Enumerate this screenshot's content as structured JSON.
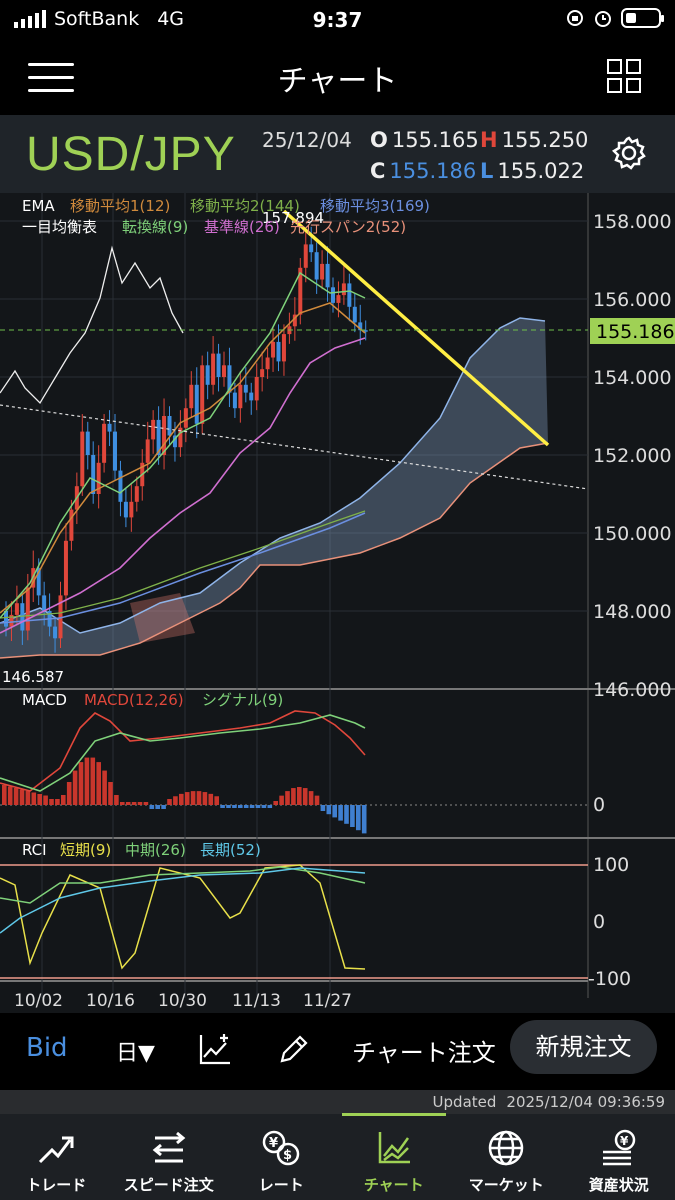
{
  "status_bar": {
    "carrier": "SoftBank",
    "network": "4G",
    "time": "9:37"
  },
  "header": {
    "title": "チャート",
    "menu_icon": "hamburger-menu-icon",
    "layout_icon": "grid-layout-icon"
  },
  "symbol": {
    "pair": "USD/JPY",
    "date": "25/12/04",
    "open_label": "O",
    "open": "155.165",
    "high_label": "H",
    "high": "155.250",
    "close_label": "C",
    "close": "155.186",
    "low_label": "L",
    "low": "155.022",
    "settings_icon": "gear-icon"
  },
  "colors": {
    "accent_green": "#9fd155",
    "up": "#e0473b",
    "down": "#3f8fe0",
    "trendline": "#ffee44"
  },
  "chart_data": {
    "type": "candlestick",
    "price_axis": [
      "158.000",
      "156.000",
      "154.000",
      "152.000",
      "150.000",
      "148.000",
      "146.000"
    ],
    "ylim": [
      146.0,
      158.0
    ],
    "current_price": "155.186",
    "high_marker": "157.894",
    "low_marker": "146.587",
    "x_ticks": [
      "10/02",
      "10/16",
      "10/30",
      "11/13",
      "11/27"
    ],
    "legend_row1": {
      "label": "EMA",
      "items": [
        "移動平均1(12)",
        "移動平均2(144)",
        "移動平均3(169)"
      ]
    },
    "legend_row2": {
      "label": "一目均衡表",
      "items": [
        "転換線(9)",
        "基準線(26)",
        "先行スパン2(52)"
      ]
    },
    "macd": {
      "label": "MACD",
      "items": [
        "MACD(12,26)",
        "シグナル(9)"
      ],
      "axis": [
        "0"
      ]
    },
    "rci": {
      "label": "RCI",
      "items": [
        "短期(9)",
        "中期(26)",
        "長期(52)"
      ],
      "axis": [
        "100",
        "0",
        "-100"
      ]
    }
  },
  "toolbar": {
    "bid": "Bid",
    "period": "日▼",
    "indicator_icon": "add-indicator-icon",
    "draw_icon": "pencil-icon",
    "chart_order": "チャート注文",
    "new_order": "新規注文"
  },
  "updated": {
    "label": "Updated",
    "value": "2025/12/04 09:36:59"
  },
  "tabs": [
    {
      "label": "トレード",
      "icon": "trend-arrow-icon"
    },
    {
      "label": "スピード注文",
      "icon": "speed-order-icon"
    },
    {
      "label": "レート",
      "icon": "yen-dollar-icon"
    },
    {
      "label": "チャート",
      "icon": "chart-icon"
    },
    {
      "label": "マーケット",
      "icon": "globe-icon"
    },
    {
      "label": "資産状況",
      "icon": "assets-icon"
    }
  ]
}
